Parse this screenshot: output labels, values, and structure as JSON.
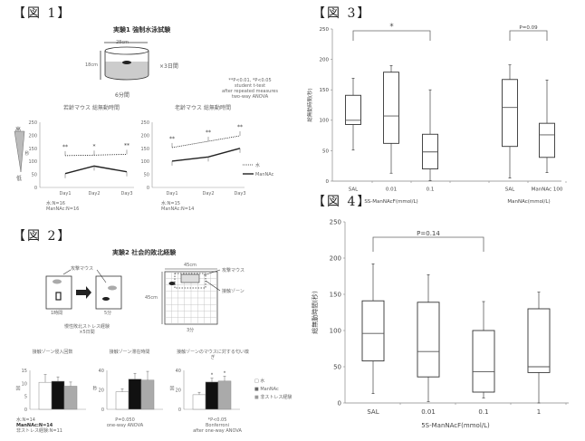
{
  "figures": {
    "fig1": {
      "label": "【図 1】",
      "title": "実験1 強制水泳試験",
      "diameter": "28cm",
      "height": "18cm",
      "repeat": "×3日間",
      "duration": "6分間",
      "stats_note": [
        "**P<0.01, *P<0.05",
        "student t-test",
        "after repeated measures",
        "two-way ANOVA"
      ],
      "depression_scale": {
        "high": "高",
        "mid": "鬱",
        "low": "低"
      },
      "legend": {
        "water": "水",
        "drug": "ManNAc"
      }
    },
    "fig2": {
      "label": "【図 2】",
      "title": "実験2 社会的敗北経験",
      "attacker": "攻撃マウス",
      "contact_zone": "接触ゾーン",
      "arena_w": "45cm",
      "arena_h": "45cm",
      "time_1h": "1時間",
      "time_5m": "5分",
      "time_3m": "3分",
      "stress_caption": [
        "慢性敗北ストレス経験",
        "×5日間"
      ],
      "legend": {
        "water": "水",
        "drug": "ManNAc",
        "nostress": "非ストレス経験"
      },
      "n_note": [
        "水:N=14",
        "ManNAc:N=14",
        "非ストレス経験:N=11"
      ],
      "note2": [
        "P=0.050",
        "one-way ANOVA"
      ],
      "note3": [
        "*P<0.05",
        "Bonferroni",
        "after one-way ANOVA"
      ]
    },
    "fig3": {
      "label": "【図 3】"
    },
    "fig4": {
      "label": "【図 4】"
    }
  },
  "chart_data": [
    {
      "id": "fig1-young",
      "type": "line",
      "title": "若齢マウス 総無動時間",
      "xlabel": "",
      "ylabel": "秒",
      "categories": [
        "Day1",
        "Day2",
        "Day3"
      ],
      "ylim": [
        0,
        250
      ],
      "yticks": [
        0,
        50,
        100,
        150,
        200,
        250
      ],
      "series": [
        {
          "name": "水",
          "style": "dotted",
          "values": [
            122,
            124,
            127
          ],
          "significance": [
            "**",
            "*",
            "**"
          ]
        },
        {
          "name": "ManNAc",
          "style": "solid",
          "values": [
            53,
            82,
            60
          ]
        }
      ],
      "n_note": [
        "水:N=16",
        "ManNAc:N=16"
      ]
    },
    {
      "id": "fig1-aged",
      "type": "line",
      "title": "老齢マウス 総無動時間",
      "xlabel": "",
      "ylabel": "",
      "categories": [
        "Day1",
        "Day2",
        "Day3"
      ],
      "ylim": [
        0,
        250
      ],
      "yticks": [
        0,
        50,
        100,
        150,
        200,
        250
      ],
      "series": [
        {
          "name": "水",
          "style": "dotted",
          "values": [
            153,
            177,
            198
          ],
          "significance": [
            "**",
            "**",
            "**"
          ]
        },
        {
          "name": "ManNAc",
          "style": "solid",
          "values": [
            101,
            117,
            150
          ]
        }
      ],
      "legend": "right",
      "n_note": [
        "水:N=15",
        "ManNAc:N=14"
      ]
    },
    {
      "id": "fig2-entries",
      "type": "bar",
      "title": "接触ゾーン侵入回数",
      "ylabel": "回",
      "categories": [
        "水",
        "ManNAc",
        "非ストレス経験"
      ],
      "values": [
        10.4,
        10.8,
        8.9
      ],
      "errors": [
        3.0,
        1.7,
        1.6
      ],
      "ylim": [
        0,
        15
      ],
      "yticks": [
        0,
        5,
        10,
        15
      ]
    },
    {
      "id": "fig2-duration",
      "type": "bar",
      "title": "接触ゾーン滞在時間",
      "ylabel": "秒",
      "categories": [
        "水",
        "ManNAc",
        "非ストレス経験"
      ],
      "values": [
        18,
        31,
        30
      ],
      "errors": [
        3,
        6,
        9
      ],
      "ylim": [
        0,
        40
      ],
      "yticks": [
        0,
        20,
        40
      ]
    },
    {
      "id": "fig2-sniff",
      "type": "bar",
      "title": "接触ゾーンのマウスに対する匂い嗅ぎ",
      "ylabel": "回",
      "categories": [
        "水",
        "ManNAc",
        "非ストレス経験"
      ],
      "values": [
        15,
        28,
        29
      ],
      "errors": [
        2.5,
        4,
        5
      ],
      "significance": [
        "",
        "*",
        "*"
      ],
      "ylim": [
        0,
        40
      ],
      "yticks": [
        0,
        20,
        40
      ],
      "legend": "right"
    },
    {
      "id": "fig3",
      "type": "boxplot",
      "title": "",
      "ylabel": "総無動時間(秒)",
      "ylim": [
        0,
        250
      ],
      "yticks": [
        0,
        50,
        100,
        150,
        200,
        250
      ],
      "groups": [
        {
          "label": "SS-ManNAcF(mmol/L)",
          "categories": [
            "SAL",
            "0.01",
            "0.1"
          ]
        },
        {
          "label": "ManNAc(mmol/L)",
          "categories": [
            "SAL",
            "ManNAc 100"
          ]
        }
      ],
      "boxes": [
        {
          "category": "SAL",
          "min": 51,
          "q1": 93,
          "median": 100,
          "q3": 141,
          "max": 169
        },
        {
          "category": "0.01",
          "min": 13,
          "q1": 62,
          "median": 107,
          "q3": 179,
          "max": 190
        },
        {
          "category": "0.1",
          "min": 1,
          "q1": 20,
          "median": 48,
          "q3": 77,
          "max": 150
        },
        {
          "category": "SAL",
          "min": 5,
          "q1": 57,
          "median": 121,
          "q3": 167,
          "max": 191
        },
        {
          "category": "ManNAc 100",
          "min": 14,
          "q1": 39,
          "median": 76,
          "q3": 95,
          "max": 166
        }
      ],
      "annotations": [
        {
          "text": "*",
          "from": 0,
          "to": 2
        },
        {
          "text": "P=0.09",
          "from": 3,
          "to": 4
        }
      ]
    },
    {
      "id": "fig4",
      "type": "boxplot",
      "title": "",
      "xlabel": "5S-ManNAcF(mmol/L)",
      "ylabel": "総無動時間(秒)",
      "ylim": [
        0,
        250
      ],
      "yticks": [
        0,
        50,
        100,
        150,
        200,
        250
      ],
      "categories": [
        "SAL",
        "0.01",
        "0.1",
        "1"
      ],
      "boxes": [
        {
          "category": "SAL",
          "min": 13,
          "q1": 58,
          "median": 96,
          "q3": 141,
          "max": 192
        },
        {
          "category": "0.01",
          "min": 2,
          "q1": 36,
          "median": 71,
          "q3": 139,
          "max": 177
        },
        {
          "category": "0.1",
          "min": 7,
          "q1": 15,
          "median": 43,
          "q3": 100,
          "max": 140
        },
        {
          "category": "1",
          "min": 0,
          "q1": 42,
          "median": 50,
          "q3": 130,
          "max": 153
        }
      ],
      "annotations": [
        {
          "text": "P=0.14",
          "from": 0,
          "to": 2
        }
      ]
    }
  ]
}
